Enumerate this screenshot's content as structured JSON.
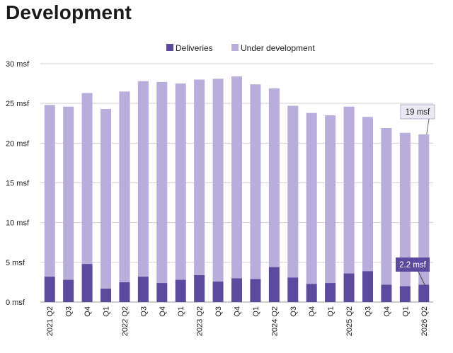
{
  "title": "Development",
  "colors": {
    "deliveries": "#5b4a9e",
    "under_development": "#b8addb",
    "grid": "#d0d0d0",
    "annotation_light_bg": "#ebe8f4"
  },
  "chart_data": {
    "type": "bar",
    "stacked": true,
    "categories": [
      "2021 Q2",
      "Q3",
      "Q4",
      "Q1",
      "2022 Q2",
      "Q3",
      "Q4",
      "Q1",
      "2023 Q2",
      "Q3",
      "Q4",
      "Q1",
      "2024 Q2",
      "Q3",
      "Q4",
      "Q1",
      "2025 Q2",
      "Q3",
      "Q4",
      "Q1",
      "2026 Q2"
    ],
    "series": [
      {
        "name": "Deliveries",
        "values": [
          3.2,
          2.8,
          4.8,
          1.7,
          2.5,
          3.2,
          2.4,
          2.8,
          3.4,
          2.6,
          3.0,
          2.9,
          4.4,
          3.1,
          2.3,
          2.4,
          3.6,
          3.9,
          2.2,
          2.0,
          2.2
        ]
      },
      {
        "name": "Under development",
        "values": [
          21.6,
          21.8,
          21.5,
          22.6,
          24.0,
          24.6,
          25.3,
          24.7,
          24.6,
          25.5,
          25.4,
          24.5,
          22.5,
          21.6,
          21.5,
          21.1,
          21.0,
          19.4,
          19.7,
          19.3,
          18.9
        ]
      }
    ],
    "ylim": [
      0,
      30
    ],
    "yticks": [
      "0 msf",
      "5 msf",
      "10 msf",
      "15 msf",
      "20 msf",
      "25 msf",
      "30 msf"
    ],
    "ytick_values": [
      0,
      5,
      10,
      15,
      20,
      25,
      30
    ],
    "grid": true,
    "legend_position": "top-center",
    "annotations": [
      {
        "text": "19 msf",
        "series": "Under development",
        "index": 20,
        "style": "light"
      },
      {
        "text": "2.2 msf",
        "series": "Deliveries",
        "index": 20,
        "style": "dark"
      }
    ]
  }
}
